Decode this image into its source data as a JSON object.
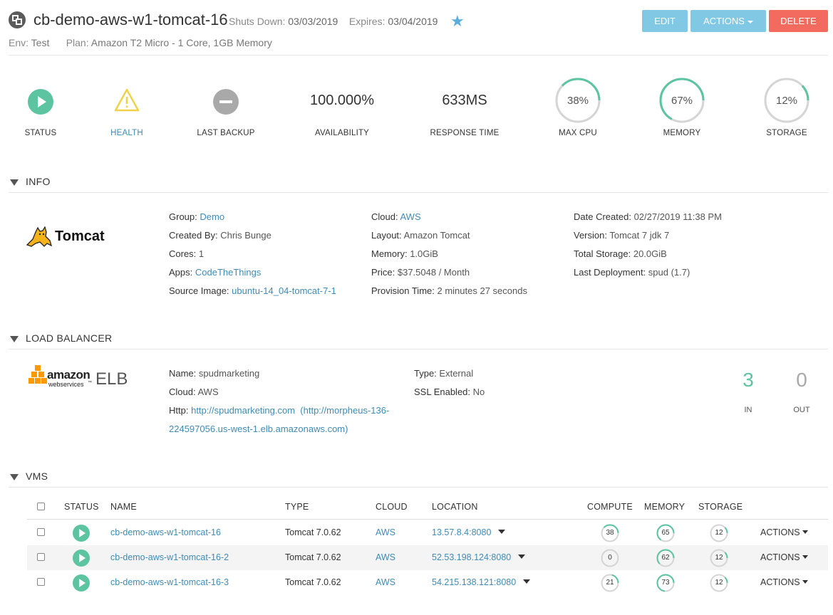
{
  "header": {
    "title": "cb-demo-aws-w1-tomcat-16",
    "shuts_down_label": "Shuts Down:",
    "shuts_down_value": "03/03/2019",
    "expires_label": "Expires:",
    "expires_value": "03/04/2019",
    "env_label": "Env:",
    "env_value": "Test",
    "plan_label": "Plan:",
    "plan_value": "Amazon T2 Micro - 1 Core, 1GB Memory",
    "buttons": {
      "edit": "EDIT",
      "actions": "ACTIONS",
      "delete": "DELETE"
    }
  },
  "stats": {
    "status_label": "STATUS",
    "health_label": "HEALTH",
    "backup_label": "LAST BACKUP",
    "availability_value": "100.000%",
    "availability_label": "AVAILABILITY",
    "response_value": "633MS",
    "response_label": "RESPONSE TIME",
    "cpu": {
      "value": "38%",
      "label": "MAX CPU",
      "percent": 38
    },
    "memory": {
      "value": "67%",
      "label": "MEMORY",
      "percent": 67
    },
    "storage": {
      "value": "12%",
      "label": "STORAGE",
      "percent": 12
    }
  },
  "info": {
    "section_title": "INFO",
    "logo_text": "Tomcat",
    "col1": [
      {
        "k": "Group:",
        "v": "Demo",
        "link": true
      },
      {
        "k": "Created By:",
        "v": "Chris Bunge",
        "link": false
      },
      {
        "k": "Cores:",
        "v": "1",
        "link": false
      },
      {
        "k": "Apps:",
        "v": "CodeTheThings",
        "link": true
      },
      {
        "k": "Source Image:",
        "v": "ubuntu-14_04-tomcat-7-1",
        "link": true
      }
    ],
    "col2": [
      {
        "k": "Cloud:",
        "v": "AWS",
        "link": true
      },
      {
        "k": "Layout:",
        "v": "Amazon Tomcat",
        "link": false
      },
      {
        "k": "Memory:",
        "v": "1.0GiB",
        "link": false
      },
      {
        "k": "Price:",
        "v": "$37.5048 / Month",
        "link": false
      },
      {
        "k": "Provision Time:",
        "v": "2 minutes 27 seconds",
        "link": false
      }
    ],
    "col3": [
      {
        "k": "Date Created:",
        "v": "02/27/2019 11:38 PM",
        "link": false
      },
      {
        "k": "Version:",
        "v": "Tomcat 7 jdk 7",
        "link": false
      },
      {
        "k": "Total Storage:",
        "v": "20.0GiB",
        "link": false
      },
      {
        "k": "Last Deployment:",
        "v": "spud (1.7)",
        "link": false
      }
    ]
  },
  "load_balancer": {
    "section_title": "LOAD BALANCER",
    "logo_amazon": "amazon",
    "logo_ws": "webservices",
    "logo_tm": "™",
    "logo_elb": "ELB",
    "name_label": "Name:",
    "name_value": "spudmarketing",
    "cloud_label": "Cloud:",
    "cloud_value": "AWS",
    "http_label": "Http:",
    "http_link": "http://spudmarketing.com",
    "http_alias_1": "(http://morpheus-136-",
    "http_alias_2": "224597056.us-west-1.elb.amazonaws.com)",
    "type_label": "Type:",
    "type_value": "External",
    "ssl_label": "SSL Enabled:",
    "ssl_value": "No",
    "in_value": "3",
    "in_label": "IN",
    "out_value": "0",
    "out_label": "OUT",
    "in_color": "#5cc4a0",
    "out_color": "#a9a9a9"
  },
  "vms": {
    "section_title": "VMS",
    "columns": {
      "status": "STATUS",
      "name": "NAME",
      "type": "TYPE",
      "cloud": "CLOUD",
      "location": "LOCATION",
      "compute": "COMPUTE",
      "memory": "MEMORY",
      "storage": "STORAGE"
    },
    "actions_label": "ACTIONS",
    "rows": [
      {
        "name": "cb-demo-aws-w1-tomcat-16",
        "type": "Tomcat 7.0.62",
        "cloud": "AWS",
        "location": "13.57.8.4:8080",
        "compute": 38,
        "memory": 65,
        "storage": 12
      },
      {
        "name": "cb-demo-aws-w1-tomcat-16-2",
        "type": "Tomcat 7.0.62",
        "cloud": "AWS",
        "location": "52.53.198.124:8080",
        "compute": 0,
        "memory": 62,
        "storage": 12
      },
      {
        "name": "cb-demo-aws-w1-tomcat-16-3",
        "type": "Tomcat 7.0.62",
        "cloud": "AWS",
        "location": "54.215.138.121:8080",
        "compute": 21,
        "memory": 73,
        "storage": 12
      }
    ]
  },
  "colors": {
    "accent": "#5cc4a0",
    "link": "#3f8bb5",
    "button": "#80c8e4",
    "danger": "#f36b5e",
    "warning": "#f0d24a",
    "star": "#5aaedd"
  }
}
